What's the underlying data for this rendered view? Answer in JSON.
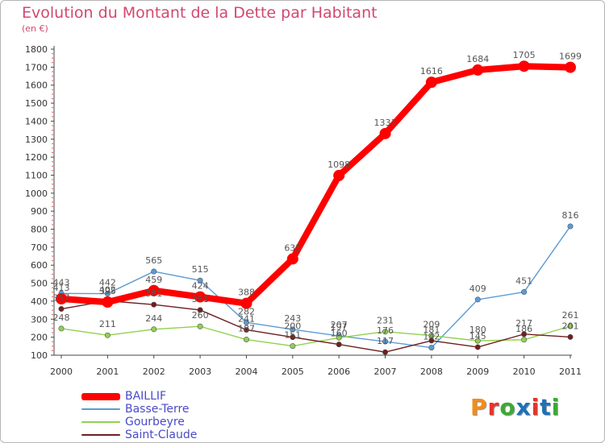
{
  "header": {
    "title": "Evolution du Montant de la Dette par Habitant",
    "subtitle": "(en €)"
  },
  "brand": {
    "logo_text": "Proxiti",
    "logo_colors": [
      "#f28c1e",
      "#e6332a",
      "#3aaa35",
      "#1d71b8",
      "#e6332a",
      "#1d71b8",
      "#3aaa35"
    ]
  },
  "chart_data": {
    "type": "line",
    "title": "Evolution du Montant de la Dette par Habitant",
    "subtitle": "(en €)",
    "x": [
      "2000",
      "2001",
      "2002",
      "2003",
      "2004",
      "2005",
      "2006",
      "2007",
      "2008",
      "2009",
      "2010",
      "2011"
    ],
    "ylim": [
      100,
      1800
    ],
    "yticks": [
      100,
      200,
      300,
      400,
      500,
      600,
      700,
      800,
      900,
      1000,
      1100,
      1200,
      1300,
      1400,
      1500,
      1600,
      1700,
      1800
    ],
    "grid": false,
    "legend_position": "bottom-left",
    "series": [
      {
        "name": "BAILLIF",
        "color": "#ff0000",
        "values": [
          413,
          395,
          459,
          424,
          388,
          635,
          1098,
          1331,
          1616,
          1684,
          1705,
          1699
        ]
      },
      {
        "name": "Basse-Terre",
        "color": "#5b9bd5",
        "values": [
          443,
          442,
          565,
          515,
          282,
          243,
          207,
          176,
          142,
          409,
          451,
          816
        ]
      },
      {
        "name": "Gourbeyre",
        "color": "#92d050",
        "values": [
          248,
          211,
          244,
          260,
          187,
          151,
          197,
          231,
          209,
          180,
          186,
          261
        ]
      },
      {
        "name": "Saint-Claude",
        "color": "#6e1f1f",
        "values": [
          357,
          402,
          381,
          351,
          241,
          200,
          160,
          117,
          181,
          145,
          217,
          201
        ]
      }
    ]
  }
}
